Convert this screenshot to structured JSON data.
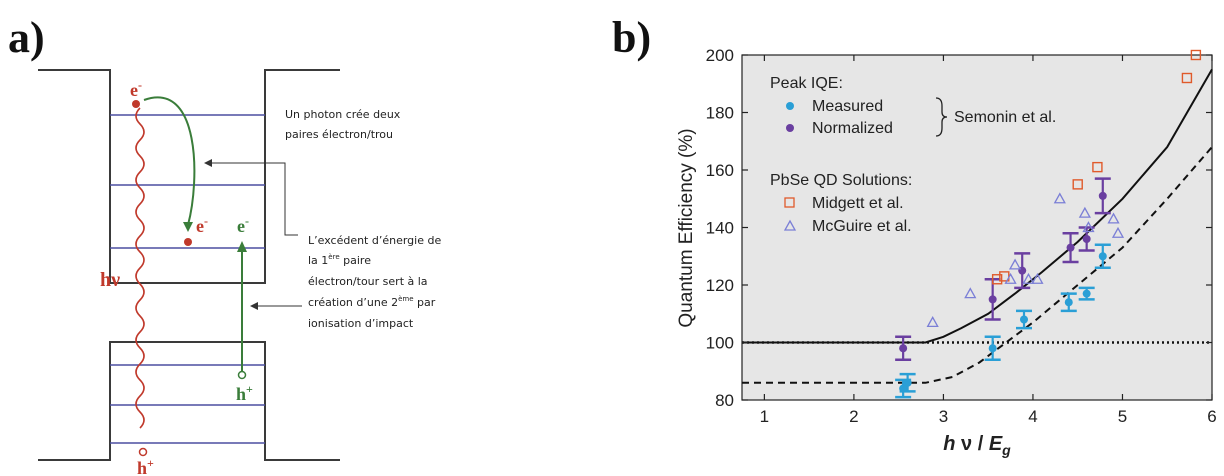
{
  "left_panel": {
    "panel_label": "a)",
    "annotation_1_line1": "Un photon crée deux",
    "annotation_1_line2": "paires électron/trou",
    "annotation_2_line1": "L’excédent d’énergie de",
    "annotation_2_line2_pre": "la 1",
    "annotation_2_line2_sup": "ère",
    "annotation_2_line2_post": " paire",
    "annotation_2_line3": "électron/tour  sert à la",
    "annotation_2_line4_pre": "création d’une 2",
    "annotation_2_line4_sup": "ème",
    "annotation_2_line4_post": " par",
    "annotation_2_line5": "ionisation d’impact",
    "hv_label": "hν",
    "e_top": "e",
    "e_mid_left": "e",
    "e_mid_right": "e",
    "e_sup": "-",
    "h_right": "h",
    "h_bottom": "h",
    "h_sup": "+",
    "colors": {
      "red": "#c0392b",
      "green": "#3a7d3a",
      "level": "#4b4fa0",
      "well": "#3a3a3a"
    }
  },
  "chart_data": {
    "panel_label": "b)",
    "type": "scatter",
    "xlabel": "hν / Eg",
    "xlabel_parts": {
      "h": "h",
      "nu": " ν / ",
      "E": "E",
      "sub": "g"
    },
    "ylabel": "Quantum Efficiency (%)",
    "xlim": [
      0.75,
      6
    ],
    "ylim": [
      80,
      200
    ],
    "xticks": [
      1,
      2,
      3,
      4,
      5,
      6
    ],
    "yticks": [
      80,
      100,
      120,
      140,
      160,
      180,
      200
    ],
    "background": "#e6e6e6",
    "legend": {
      "placement": "top-left",
      "group1_title": "Peak IQE:",
      "group1_bracket_label": "Semonin et al.",
      "group2_title": "PbSe QD Solutions:"
    },
    "series": [
      {
        "name": "Measured",
        "marker": "circle",
        "color": "#2a9fd6",
        "points": [
          {
            "x": 2.55,
            "y": 84,
            "err": 3
          },
          {
            "x": 2.6,
            "y": 86,
            "err": 3
          },
          {
            "x": 3.55,
            "y": 98,
            "err": 4
          },
          {
            "x": 3.9,
            "y": 108,
            "err": 3
          },
          {
            "x": 4.4,
            "y": 114,
            "err": 3
          },
          {
            "x": 4.6,
            "y": 117,
            "err": 2
          },
          {
            "x": 4.78,
            "y": 130,
            "err": 4
          }
        ]
      },
      {
        "name": "Normalized",
        "marker": "circle",
        "color": "#6a3fa0",
        "points": [
          {
            "x": 2.55,
            "y": 98,
            "err": 4
          },
          {
            "x": 3.55,
            "y": 115,
            "err": 7
          },
          {
            "x": 3.88,
            "y": 125,
            "err": 6
          },
          {
            "x": 4.42,
            "y": 133,
            "err": 5
          },
          {
            "x": 4.6,
            "y": 136,
            "err": 4
          },
          {
            "x": 4.78,
            "y": 151,
            "err": 6
          }
        ]
      },
      {
        "name": "Midgett et al.",
        "marker": "open-square",
        "color": "#e05a2b",
        "points": [
          {
            "x": 3.6,
            "y": 122
          },
          {
            "x": 3.68,
            "y": 123
          },
          {
            "x": 4.5,
            "y": 155
          },
          {
            "x": 4.72,
            "y": 161
          },
          {
            "x": 5.72,
            "y": 192
          },
          {
            "x": 5.82,
            "y": 200
          }
        ]
      },
      {
        "name": "McGuire et al.",
        "marker": "open-triangle",
        "color": "#7b7fd6",
        "points": [
          {
            "x": 2.88,
            "y": 107
          },
          {
            "x": 3.3,
            "y": 117
          },
          {
            "x": 3.75,
            "y": 122
          },
          {
            "x": 3.8,
            "y": 127
          },
          {
            "x": 3.95,
            "y": 122
          },
          {
            "x": 4.05,
            "y": 122
          },
          {
            "x": 4.3,
            "y": 150
          },
          {
            "x": 4.58,
            "y": 145
          },
          {
            "x": 4.62,
            "y": 140
          },
          {
            "x": 4.9,
            "y": 143
          },
          {
            "x": 4.95,
            "y": 138
          }
        ]
      }
    ],
    "lines": [
      {
        "style": "dotted",
        "y": 100
      },
      {
        "style": "solid",
        "points": [
          [
            0.75,
            100
          ],
          [
            2.8,
            100
          ],
          [
            3.0,
            102
          ],
          [
            3.2,
            105
          ],
          [
            3.5,
            110
          ],
          [
            3.8,
            117
          ],
          [
            4.1,
            124.5
          ],
          [
            4.5,
            135
          ],
          [
            5.0,
            150
          ],
          [
            5.5,
            168
          ],
          [
            6.0,
            195
          ]
        ]
      },
      {
        "style": "dashed",
        "points": [
          [
            0.75,
            86
          ],
          [
            2.8,
            86
          ],
          [
            3.1,
            88
          ],
          [
            3.4,
            93
          ],
          [
            3.7,
            100
          ],
          [
            4.0,
            107
          ],
          [
            4.5,
            120
          ],
          [
            5.0,
            133
          ],
          [
            5.5,
            150
          ],
          [
            6.0,
            168
          ]
        ]
      }
    ]
  }
}
